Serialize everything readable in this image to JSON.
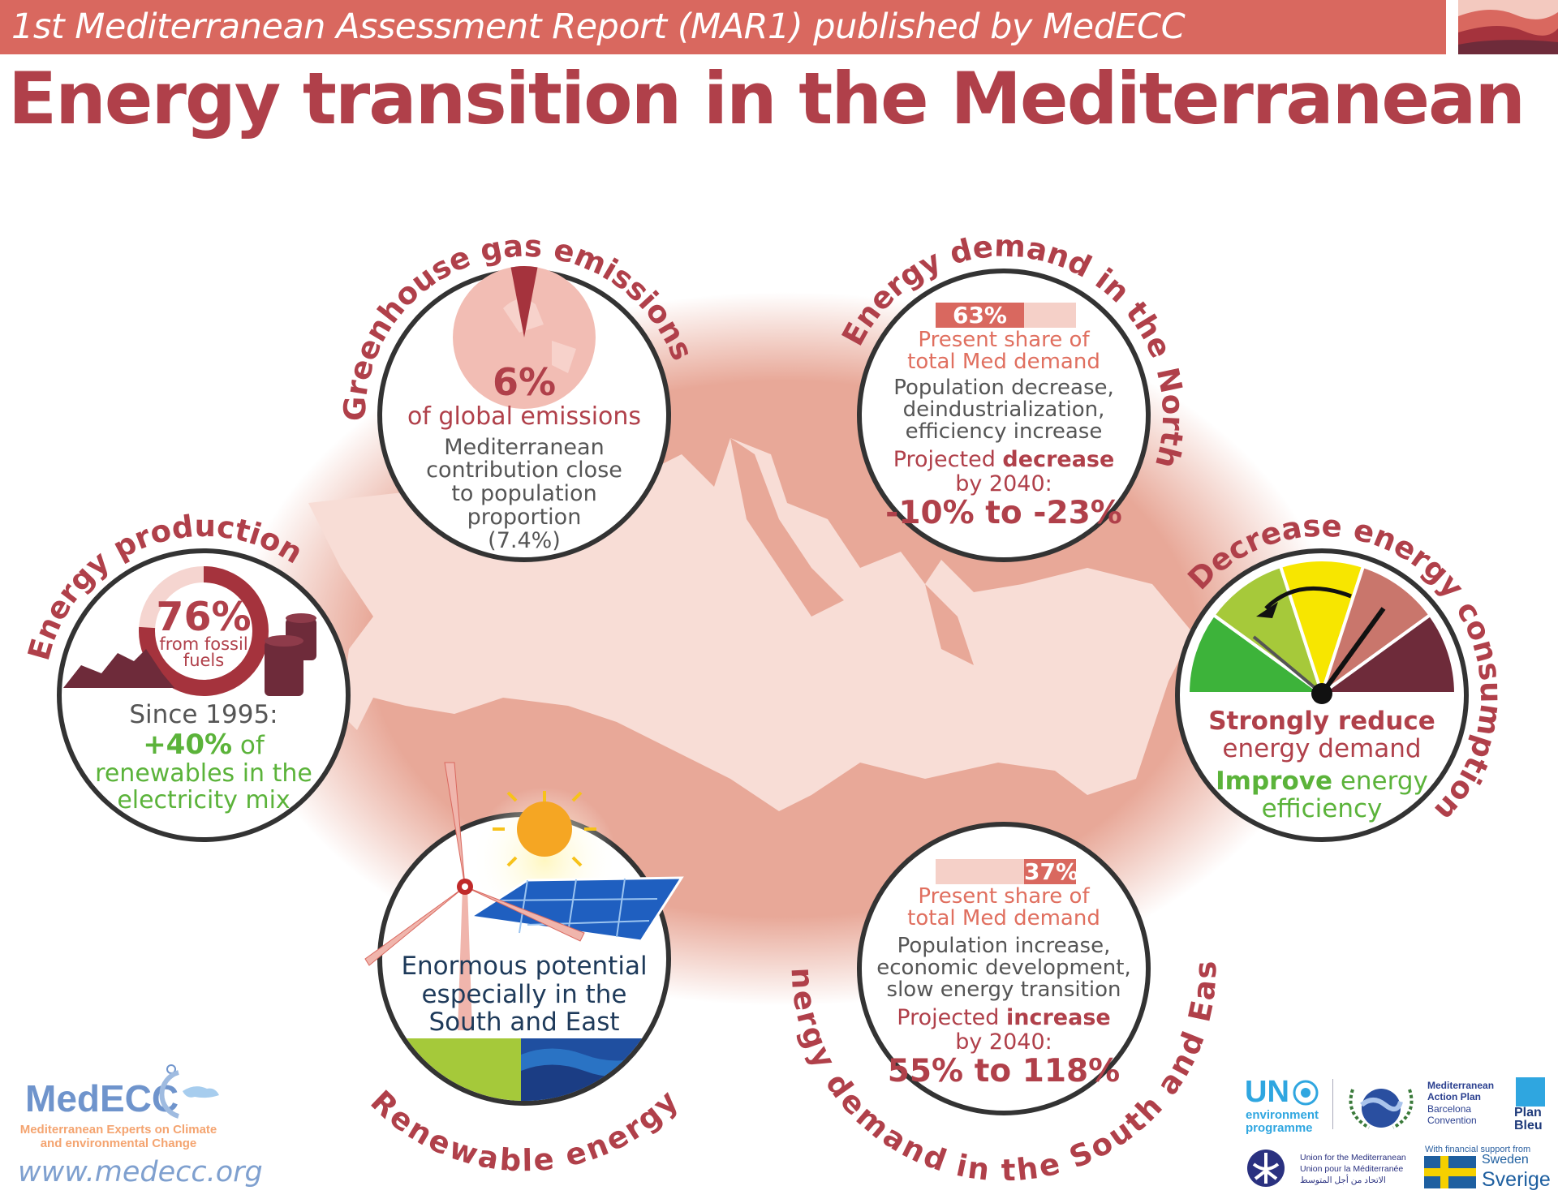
{
  "header": {
    "banner": "1st Mediterranean Assessment Report (MAR1) published by MedECC",
    "title": "Energy transition in the Mediterranean"
  },
  "colors": {
    "accent": "#b0404a",
    "banner": "#d9685f",
    "green": "#5bb33a",
    "map_land": "#e8a898",
    "map_sea": "#f8ddd6"
  },
  "ghg": {
    "arc_title": "Greenhouse gas emissions",
    "value": "6%",
    "value_fraction": 0.06,
    "caption": "of global emissions",
    "lines": [
      "Mediterranean",
      "contribution close",
      "to population",
      "proportion",
      "(7.4%)"
    ]
  },
  "north": {
    "arc_title": "Energy demand in the North",
    "share": "63%",
    "share_fraction": 0.63,
    "share_lines": [
      "Present share of",
      "total Med demand"
    ],
    "drivers": [
      "Population decrease,",
      "deindustrialization,",
      "efficiency increase"
    ],
    "projected_prefix": "Projected ",
    "projected_word": "decrease",
    "by": "by 2040:",
    "range": "-10% to -23%"
  },
  "production": {
    "arc_title": "Energy production",
    "value": "76%",
    "value_fraction": 0.76,
    "caption_lines": [
      "from fossil",
      "fuels"
    ],
    "since": "Since 1995:",
    "growth": "+40%",
    "growth_suffix": " of",
    "lines": [
      "renewables in the",
      "electricity mix"
    ]
  },
  "decrease": {
    "arc_title": "Decrease energy consumption",
    "gauge_colors": [
      "#3db33a",
      "#a6c93a",
      "#f7e600",
      "#c9766c",
      "#6e2b3a"
    ],
    "line1_bold": "Strongly reduce",
    "line2": "energy demand",
    "line3_bold": "Improve",
    "line3_rest": " energy",
    "line4": "efficiency"
  },
  "renewable": {
    "arc_title": "Renewable energy",
    "lines": [
      "Enormous potential",
      "especially in the",
      "South and East"
    ],
    "icons": [
      "wind-turbine-icon",
      "sun-icon",
      "solar-panel-icon",
      "waves-icon"
    ]
  },
  "south": {
    "arc_title": "Energy demand in the South and East",
    "share": "37%",
    "share_fraction": 0.37,
    "share_lines": [
      "Present share of",
      "total Med demand"
    ],
    "drivers": [
      "Population increase,",
      "economic development,",
      "slow energy transition"
    ],
    "projected_prefix": "Projected ",
    "projected_word": "increase",
    "by": "by 2040:",
    "range": "55% to 118%"
  },
  "footer": {
    "medecc": {
      "name": "MedECC",
      "tagline": [
        "Mediterranean Experts on Climate",
        "and environmental Change"
      ],
      "url": "www.medecc.org"
    },
    "unep": {
      "un": "UN",
      "lines": [
        "environment",
        "programme"
      ]
    },
    "map": {
      "lines_bold": [
        "Mediterranean",
        "Action Plan"
      ],
      "lines": [
        "Barcelona",
        "Convention"
      ]
    },
    "planbleu": [
      "Plan",
      "Bleu"
    ],
    "ufm": [
      "Union for the Mediterranean",
      "Union pour la Méditerranée",
      "الاتحاد من أجل المتوسط"
    ],
    "sweden": {
      "support": "With financial support from",
      "lines": [
        "Sweden",
        "Sverige"
      ]
    }
  }
}
